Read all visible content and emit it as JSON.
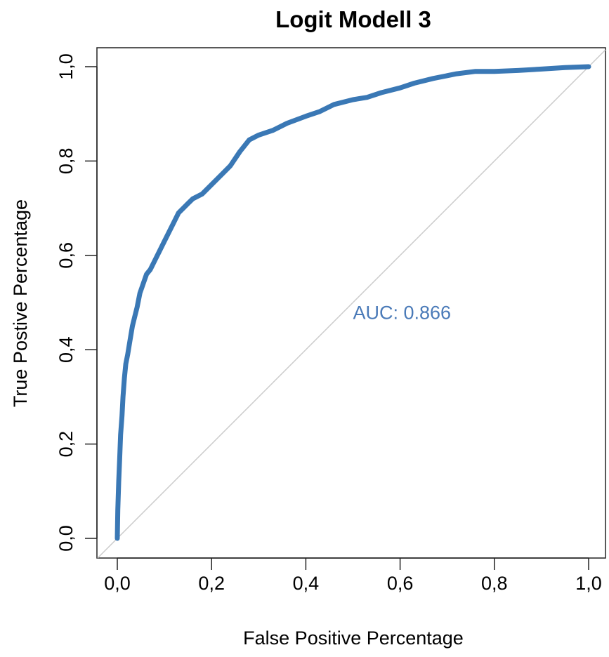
{
  "chart_data": {
    "type": "line",
    "title": "Logit Modell 3",
    "xlabel": "False Positive Percentage",
    "ylabel": "True Postive Percentage",
    "xlim": [
      0,
      1
    ],
    "ylim": [
      0,
      1
    ],
    "x_ticks": [
      0,
      0.2,
      0.4,
      0.6,
      0.8,
      1.0
    ],
    "x_tick_labels": [
      "0,0",
      "0,2",
      "0,4",
      "0,6",
      "0,8",
      "1,0"
    ],
    "y_ticks": [
      0,
      0.2,
      0.4,
      0.6,
      0.8,
      1.0
    ],
    "y_tick_labels": [
      "0,0",
      "0,2",
      "0,4",
      "0,6",
      "0,8",
      "1,0"
    ],
    "grid": false,
    "annotation": {
      "text": "AUC: 0.866",
      "x": 0.5,
      "y": 0.48
    },
    "reference_line": {
      "x": [
        0,
        1
      ],
      "y": [
        0,
        1
      ],
      "color": "#cccccc"
    },
    "series": [
      {
        "color": "#3a78b5",
        "x": [
          0.0,
          0.001,
          0.003,
          0.005,
          0.007,
          0.01,
          0.012,
          0.015,
          0.018,
          0.022,
          0.027,
          0.032,
          0.037,
          0.042,
          0.048,
          0.055,
          0.062,
          0.07,
          0.08,
          0.09,
          0.1,
          0.11,
          0.12,
          0.13,
          0.14,
          0.15,
          0.16,
          0.18,
          0.2,
          0.22,
          0.24,
          0.26,
          0.28,
          0.3,
          0.33,
          0.36,
          0.4,
          0.43,
          0.46,
          0.5,
          0.53,
          0.56,
          0.6,
          0.63,
          0.67,
          0.72,
          0.76,
          0.8,
          0.85,
          0.9,
          0.95,
          1.0
        ],
        "y": [
          0.0,
          0.06,
          0.12,
          0.17,
          0.22,
          0.26,
          0.3,
          0.34,
          0.37,
          0.39,
          0.42,
          0.45,
          0.47,
          0.49,
          0.52,
          0.54,
          0.56,
          0.57,
          0.59,
          0.61,
          0.63,
          0.65,
          0.67,
          0.69,
          0.7,
          0.71,
          0.72,
          0.73,
          0.75,
          0.77,
          0.79,
          0.82,
          0.845,
          0.855,
          0.865,
          0.88,
          0.895,
          0.905,
          0.92,
          0.93,
          0.935,
          0.945,
          0.955,
          0.965,
          0.975,
          0.985,
          0.99,
          0.99,
          0.992,
          0.995,
          0.998,
          1.0
        ]
      }
    ]
  }
}
